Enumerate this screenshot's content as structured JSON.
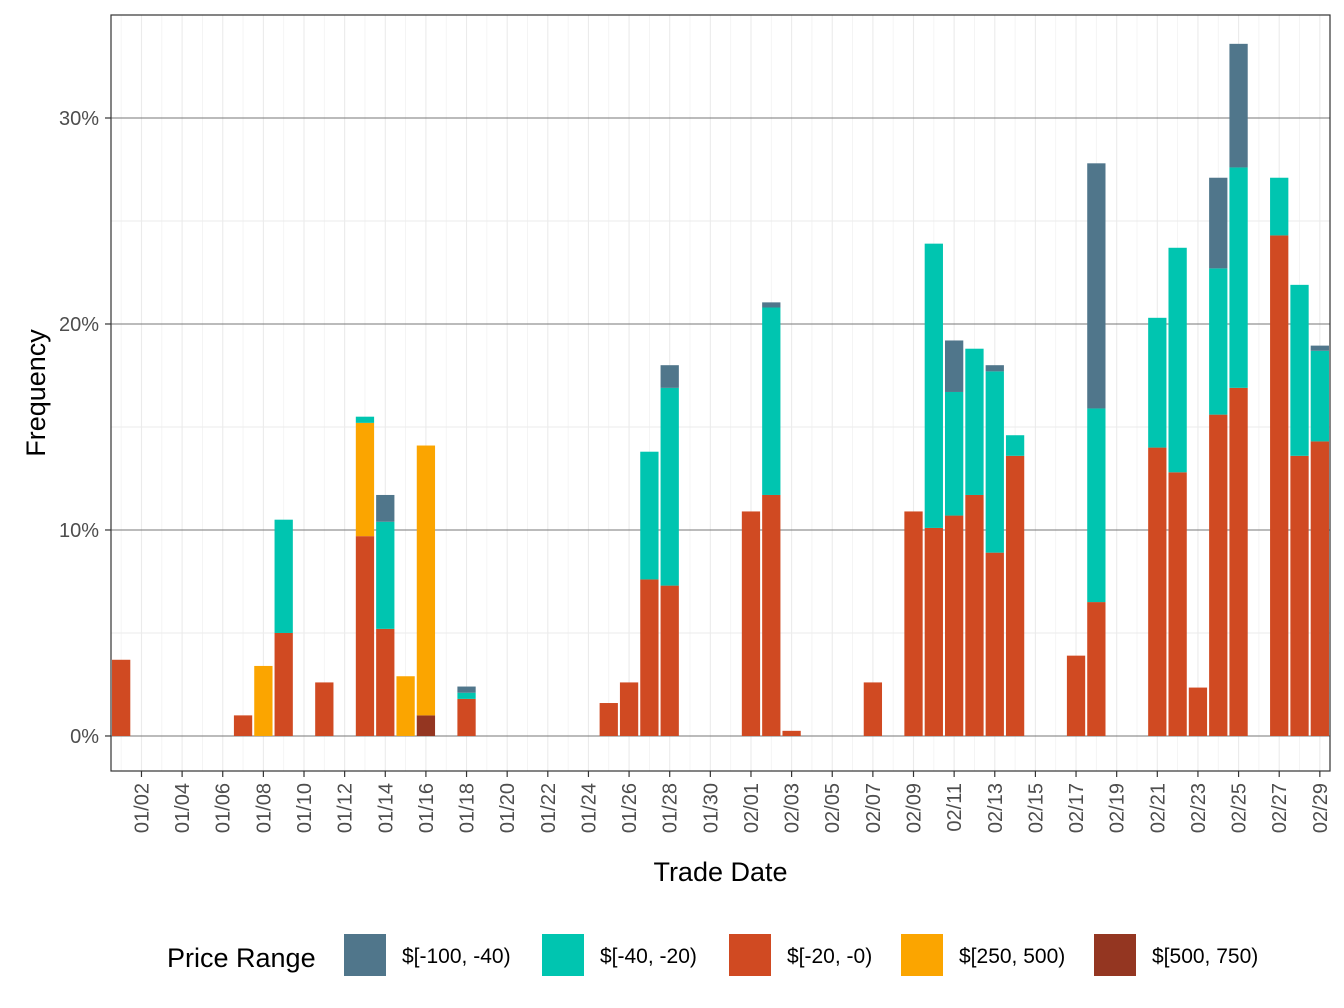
{
  "chart_data": {
    "type": "bar",
    "stacked": true,
    "xlabel": "Trade Date",
    "ylabel": "Frequency",
    "ylim": [
      -1.7,
      35
    ],
    "y_ticks": [
      0,
      10,
      20,
      30
    ],
    "y_tick_labels": [
      "0%",
      "10%",
      "20%",
      "30%"
    ],
    "grid": true,
    "legend_position": "bottom",
    "legend_title": "Price Range",
    "dates": [
      "01/01",
      "01/02",
      "01/03",
      "01/04",
      "01/05",
      "01/06",
      "01/07",
      "01/08",
      "01/09",
      "01/10",
      "01/11",
      "01/12",
      "01/13",
      "01/14",
      "01/15",
      "01/16",
      "01/17",
      "01/18",
      "01/19",
      "01/20",
      "01/21",
      "01/22",
      "01/23",
      "01/24",
      "01/25",
      "01/26",
      "01/27",
      "01/28",
      "01/29",
      "01/30",
      "01/31",
      "02/01",
      "02/02",
      "02/03",
      "02/04",
      "02/05",
      "02/06",
      "02/07",
      "02/08",
      "02/09",
      "02/10",
      "02/11",
      "02/12",
      "02/13",
      "02/14",
      "02/15",
      "02/16",
      "02/17",
      "02/18",
      "02/19",
      "02/20",
      "02/21",
      "02/22",
      "02/23",
      "02/24",
      "02/25",
      "02/26",
      "02/27",
      "02/28",
      "02/29"
    ],
    "x_tick_labels": [
      "01/02",
      "01/04",
      "01/06",
      "01/08",
      "01/10",
      "01/12",
      "01/14",
      "01/16",
      "01/18",
      "01/20",
      "01/22",
      "01/24",
      "01/26",
      "01/28",
      "01/30",
      "02/01",
      "02/03",
      "02/05",
      "02/07",
      "02/09",
      "02/11",
      "02/13",
      "02/15",
      "02/17",
      "02/19",
      "02/21",
      "02/23",
      "02/25",
      "02/27",
      "02/29"
    ],
    "series": [
      {
        "name": "$[-20, -0)",
        "color": "#d04a22",
        "values": [
          3.7,
          0,
          0,
          0,
          0,
          0,
          1.0,
          0,
          5.0,
          0,
          2.6,
          0,
          9.7,
          5.2,
          0,
          0,
          0,
          1.8,
          0,
          0,
          0,
          0,
          0,
          0,
          1.6,
          2.6,
          7.6,
          7.3,
          0,
          0,
          0,
          10.9,
          11.7,
          0.25,
          0,
          0,
          0,
          2.6,
          0,
          10.9,
          10.1,
          10.7,
          11.7,
          8.9,
          13.6,
          0,
          0,
          3.9,
          6.5,
          0,
          0,
          14.0,
          12.8,
          2.35,
          15.6,
          16.9,
          0,
          24.3,
          13.6,
          14.3
        ]
      },
      {
        "name": "$[-40, -20)",
        "color": "#00c5b0",
        "values": [
          0,
          0,
          0,
          0,
          0,
          0,
          0,
          0,
          5.5,
          0,
          0,
          0,
          0.3,
          5.2,
          0,
          0,
          0,
          0.3,
          0,
          0,
          0,
          0,
          0,
          0,
          0,
          0,
          6.2,
          9.6,
          0,
          0,
          0,
          0,
          9.1,
          0,
          0,
          0,
          0,
          0,
          0,
          0,
          13.8,
          6.0,
          7.1,
          8.8,
          1.0,
          0,
          0,
          0,
          9.4,
          0,
          0,
          6.3,
          10.9,
          0,
          7.1,
          10.7,
          0,
          2.8,
          8.3,
          4.4
        ]
      },
      {
        "name": "$[-100, -40)",
        "color": "#50768b",
        "values": [
          0,
          0,
          0,
          0,
          0,
          0,
          0,
          0,
          0,
          0,
          0,
          0,
          0,
          1.3,
          0,
          0,
          0,
          0.3,
          0,
          0,
          0,
          0,
          0,
          0,
          0,
          0,
          0,
          1.1,
          0,
          0,
          0,
          0,
          0.25,
          0,
          0,
          0,
          0,
          0,
          0,
          0,
          0,
          2.5,
          0,
          0.3,
          0,
          0,
          0,
          0,
          11.9,
          0,
          0,
          0,
          0,
          0,
          4.4,
          6.0,
          0,
          0,
          0,
          0.25
        ]
      },
      {
        "name": "$[250, 500)",
        "color": "#fba500",
        "values": [
          0,
          0,
          0,
          0,
          0,
          0,
          0,
          3.4,
          0,
          0,
          0,
          0,
          5.5,
          0,
          2.9,
          13.1,
          0,
          0,
          0,
          0,
          0,
          0,
          0,
          0,
          0,
          0,
          0,
          0,
          0,
          0,
          0,
          0,
          0,
          0,
          0,
          0,
          0,
          0,
          0,
          0,
          0,
          0,
          0,
          0,
          0,
          0,
          0,
          0,
          0,
          0,
          0,
          0,
          0,
          0,
          0,
          0,
          0,
          0,
          0,
          0
        ]
      },
      {
        "name": "$[500, 750)",
        "color": "#943621",
        "values": [
          0,
          0,
          0,
          0,
          0,
          0,
          0,
          0,
          0,
          0,
          0,
          0,
          0,
          0,
          0,
          1.0,
          0,
          0,
          0,
          0,
          0,
          0,
          0,
          0,
          0,
          0,
          0,
          0,
          0,
          0,
          0,
          0,
          0,
          0,
          0,
          0,
          0,
          0,
          0,
          0,
          0,
          0,
          0,
          0,
          0,
          0,
          0,
          0,
          0,
          0,
          0,
          0,
          0,
          0,
          0,
          0,
          0,
          0,
          0,
          0
        ]
      }
    ],
    "stack_order_bottom_to_top": [
      "$[500, 750)",
      "$[-20, -0)",
      "$[250, 500)",
      "$[-40, -20)",
      "$[-100, -40)"
    ],
    "legend_order": [
      "$[-100, -40)",
      "$[-40, -20)",
      "$[-20, -0)",
      "$[250, 500)",
      "$[500, 750)"
    ]
  }
}
